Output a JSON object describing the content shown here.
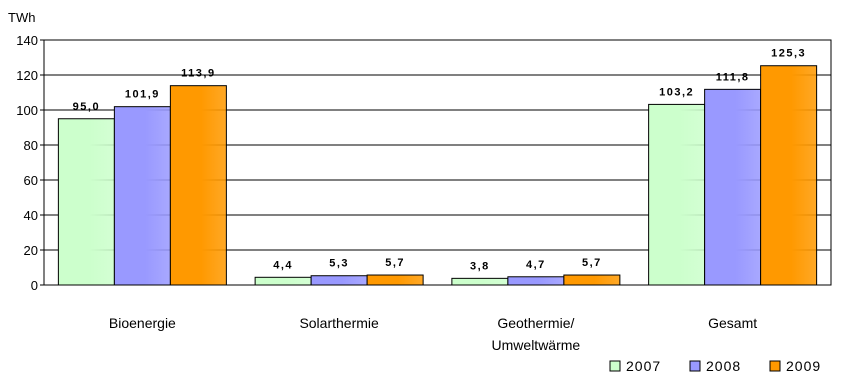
{
  "chart_data": {
    "type": "bar",
    "unit_label": "TWh",
    "categories": [
      [
        "Bioenergie"
      ],
      [
        "Solarthermie"
      ],
      [
        "Geothermie/",
        "Umweltwärme"
      ],
      [
        "Gesamt"
      ]
    ],
    "series": [
      {
        "name": "2007",
        "color": "#ccffcc",
        "values": [
          95.0,
          4.4,
          3.8,
          103.2
        ],
        "labels": [
          "95,0",
          "4,4",
          "3,8",
          "103,2"
        ]
      },
      {
        "name": "2008",
        "color": "#9999ff",
        "values": [
          101.9,
          5.3,
          4.7,
          111.8
        ],
        "labels": [
          "101,9",
          "5,3",
          "4,7",
          "111,8"
        ]
      },
      {
        "name": "2009",
        "color": "#ff9900",
        "values": [
          113.9,
          5.7,
          5.7,
          125.3
        ],
        "labels": [
          "113,9",
          "5,7",
          "5,7",
          "125,3"
        ]
      }
    ],
    "ylim": [
      0,
      140
    ],
    "yticks": [
      0,
      20,
      40,
      60,
      80,
      100,
      120,
      140
    ],
    "grid": true,
    "legend_position": "bottom-right"
  }
}
